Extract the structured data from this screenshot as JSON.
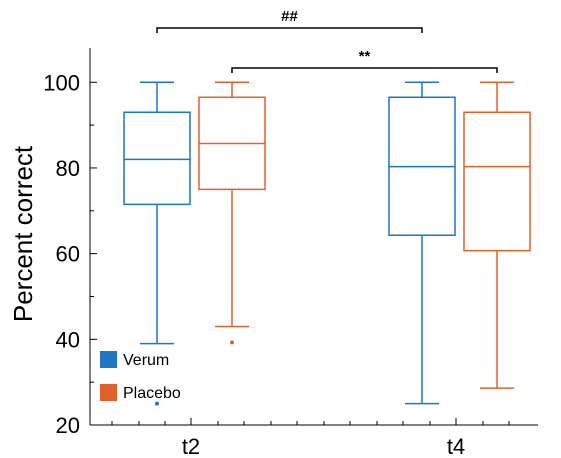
{
  "chart_data": {
    "type": "box",
    "ylabel": "Percent correct",
    "xlabel": "",
    "ylim": [
      20,
      108
    ],
    "yticks": [
      20,
      40,
      60,
      80,
      100
    ],
    "categories": [
      "t2",
      "t4"
    ],
    "series": [
      {
        "name": "Verum",
        "color": "#1f77c4",
        "boxes": [
          {
            "category": "t2",
            "min": 39,
            "q1": 71.5,
            "median": 82,
            "q3": 93,
            "max": 100,
            "outliers": [
              25
            ]
          },
          {
            "category": "t4",
            "min": 25,
            "q1": 64.3,
            "median": 80.3,
            "q3": 96.5,
            "max": 100,
            "outliers": []
          }
        ]
      },
      {
        "name": "Placebo",
        "color": "#e0622a",
        "boxes": [
          {
            "category": "t2",
            "min": 43,
            "q1": 75,
            "median": 85.7,
            "q3": 96.5,
            "max": 100,
            "outliers": [
              39.3
            ]
          },
          {
            "category": "t4",
            "min": 28.6,
            "q1": 60.7,
            "median": 80.3,
            "q3": 93,
            "max": 100,
            "outliers": []
          }
        ]
      }
    ],
    "significance": [
      {
        "label": "##",
        "from": "Verum t2",
        "to": "Verum t4"
      },
      {
        "label": "**",
        "from": "Placebo t2",
        "to": "Placebo t4"
      }
    ],
    "legend_position": "bottom-left",
    "grid": false
  }
}
